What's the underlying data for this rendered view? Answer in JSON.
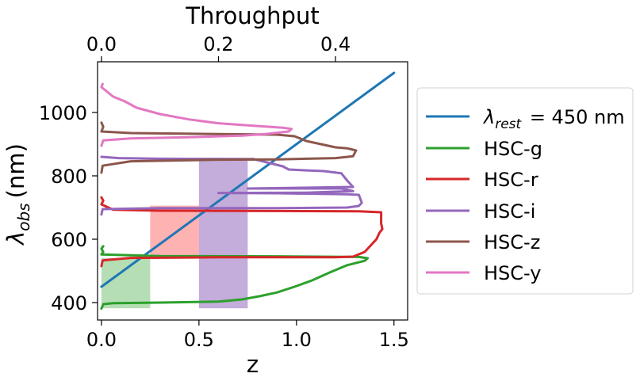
{
  "chart_data": {
    "type": "line",
    "xlabel": "z",
    "ylabel_main": "λ",
    "ylabel_sub": "obs",
    "ylabel_unit": "(nm)",
    "top_xlabel": "Throughput",
    "xlim": [
      -0.02,
      1.57
    ],
    "ylim": [
      345,
      1160
    ],
    "top_xlim": [
      -0.0067,
      0.5233
    ],
    "x_ticks": [
      0.0,
      0.5,
      1.0,
      1.5
    ],
    "x_tick_labels": [
      "0.0",
      "0.5",
      "1.0",
      "1.5"
    ],
    "y_ticks": [
      400,
      600,
      800,
      1000
    ],
    "y_tick_labels": [
      "400",
      "600",
      "800",
      "1000"
    ],
    "top_x_ticks": [
      0.0,
      0.2,
      0.4
    ],
    "top_x_tick_labels": [
      "0.0",
      "0.2",
      "0.4"
    ],
    "grid": false,
    "legend_position": "right, outside plot",
    "shaded_regions": [
      {
        "x": [
          0.0,
          0.25
        ],
        "y": [
          382,
          540
        ],
        "color": "#2ca02c",
        "opacity": 0.35
      },
      {
        "x": [
          0.25,
          0.5
        ],
        "y": [
          540,
          706
        ],
        "color": "#ff0000",
        "opacity": 0.3
      },
      {
        "x": [
          0.5,
          0.75
        ],
        "y": [
          382,
          855
        ],
        "color": "#9467bd",
        "opacity": 0.55
      }
    ],
    "series": [
      {
        "legend_main": "λ",
        "legend_sub": "rest",
        "legend_rest": " = 450 nm",
        "color": "#1f77b4",
        "axis": "bottom",
        "points": [
          [
            0.0,
            450
          ],
          [
            1.5,
            1125
          ]
        ]
      },
      {
        "name": "HSC-g",
        "color": "#2ca02c",
        "axis": "top",
        "points": [
          [
            0.0,
            381
          ],
          [
            0.003,
            395
          ],
          [
            0.02,
            398
          ],
          [
            0.1,
            400
          ],
          [
            0.2,
            403
          ],
          [
            0.24,
            410
          ],
          [
            0.27,
            420
          ],
          [
            0.3,
            432
          ],
          [
            0.33,
            450
          ],
          [
            0.36,
            470
          ],
          [
            0.39,
            495
          ],
          [
            0.42,
            518
          ],
          [
            0.45,
            532
          ],
          [
            0.455,
            540
          ],
          [
            0.44,
            544
          ],
          [
            0.3,
            546
          ],
          [
            0.1,
            547
          ],
          [
            0.0,
            552
          ],
          [
            0.003,
            560
          ],
          [
            0.0,
            570
          ],
          [
            0.003,
            578
          ]
        ]
      },
      {
        "name": "HSC-r",
        "color": "#d62728",
        "axis": "top",
        "points": [
          [
            0.0,
            515
          ],
          [
            0.002,
            533
          ],
          [
            0.05,
            541
          ],
          [
            0.2,
            543
          ],
          [
            0.4,
            543
          ],
          [
            0.43,
            545
          ],
          [
            0.45,
            560
          ],
          [
            0.47,
            600
          ],
          [
            0.475,
            620
          ],
          [
            0.48,
            632
          ],
          [
            0.478,
            650
          ],
          [
            0.478,
            685
          ],
          [
            0.44,
            688
          ],
          [
            0.3,
            689
          ],
          [
            0.1,
            690
          ],
          [
            0.02,
            693
          ],
          [
            0.0,
            710
          ],
          [
            0.003,
            722
          ],
          [
            0.0,
            732
          ]
        ]
      },
      {
        "name": "HSC-i",
        "color": "#9467bd",
        "axis": "top",
        "points": [
          [
            0.0,
            678
          ],
          [
            0.002,
            695
          ],
          [
            0.1,
            698
          ],
          [
            0.3,
            698
          ],
          [
            0.42,
            700
          ],
          [
            0.44,
            705
          ],
          [
            0.445,
            715
          ],
          [
            0.44,
            740
          ],
          [
            0.42,
            742
          ],
          [
            0.3,
            745
          ],
          [
            0.2,
            746
          ],
          [
            0.35,
            747
          ],
          [
            0.43,
            752
          ],
          [
            0.41,
            760
          ],
          [
            0.25,
            760
          ],
          [
            0.43,
            765
          ],
          [
            0.42,
            785
          ],
          [
            0.41,
            808
          ],
          [
            0.38,
            815
          ],
          [
            0.34,
            818
          ],
          [
            0.32,
            820
          ],
          [
            0.31,
            830
          ],
          [
            0.26,
            853
          ],
          [
            0.1,
            854
          ],
          [
            0.03,
            856
          ],
          [
            0.0,
            860
          ]
        ]
      },
      {
        "name": "HSC-z",
        "color": "#8c564b",
        "axis": "top",
        "points": [
          [
            0.0,
            810
          ],
          [
            0.002,
            832
          ],
          [
            0.05,
            846
          ],
          [
            0.2,
            851
          ],
          [
            0.3,
            852
          ],
          [
            0.4,
            856
          ],
          [
            0.43,
            862
          ],
          [
            0.435,
            880
          ],
          [
            0.42,
            887
          ],
          [
            0.4,
            890
          ],
          [
            0.35,
            910
          ],
          [
            0.33,
            925
          ],
          [
            0.3,
            930
          ],
          [
            0.2,
            932
          ],
          [
            0.05,
            935
          ],
          [
            0.0,
            940
          ],
          [
            0.003,
            955
          ],
          [
            0.0,
            968
          ]
        ]
      },
      {
        "name": "HSC-y",
        "color": "#e377c2",
        "axis": "top",
        "points": [
          [
            0.0,
            895
          ],
          [
            0.003,
            912
          ],
          [
            0.05,
            918
          ],
          [
            0.15,
            922
          ],
          [
            0.24,
            927
          ],
          [
            0.28,
            932
          ],
          [
            0.3,
            936
          ],
          [
            0.32,
            940
          ],
          [
            0.325,
            948
          ],
          [
            0.31,
            952
          ],
          [
            0.26,
            958
          ],
          [
            0.2,
            966
          ],
          [
            0.15,
            978
          ],
          [
            0.1,
            995
          ],
          [
            0.06,
            1015
          ],
          [
            0.04,
            1035
          ],
          [
            0.02,
            1050
          ],
          [
            0.01,
            1065
          ],
          [
            0.0,
            1080
          ],
          [
            0.002,
            1090
          ]
        ]
      }
    ]
  }
}
